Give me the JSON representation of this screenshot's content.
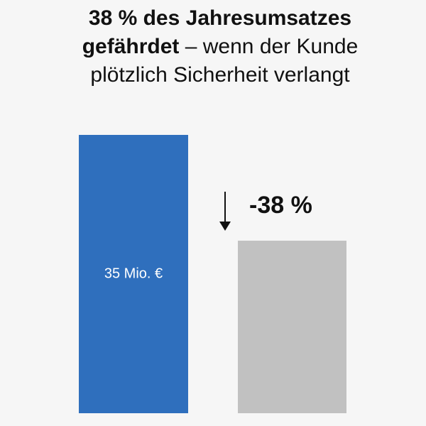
{
  "title": {
    "line1": "38 % des Jahresumsatzes",
    "line2_bold": "gefährdet",
    "line2_rest": " – wenn der Kunde",
    "line3": "plötzlich Sicherheit verlangt"
  },
  "chart_data": {
    "type": "bar",
    "title": "38 % des Jahresumsatzes gefährdet – wenn der Kunde plötzlich Sicherheit verlangt",
    "categories": [
      "",
      ""
    ],
    "values": [
      35,
      21.7
    ],
    "unit": "Mio. €",
    "data_labels": [
      "35 Mio. €",
      ""
    ],
    "annotation": {
      "text": "-38 %",
      "arrow": "down",
      "from_category": 0,
      "to_category": 1
    },
    "colors": [
      "#2f6fbd",
      "#c1c1c1"
    ],
    "ylim": [
      0,
      35
    ],
    "xlabel": "",
    "ylabel": "",
    "grid": false,
    "legend": "none"
  }
}
